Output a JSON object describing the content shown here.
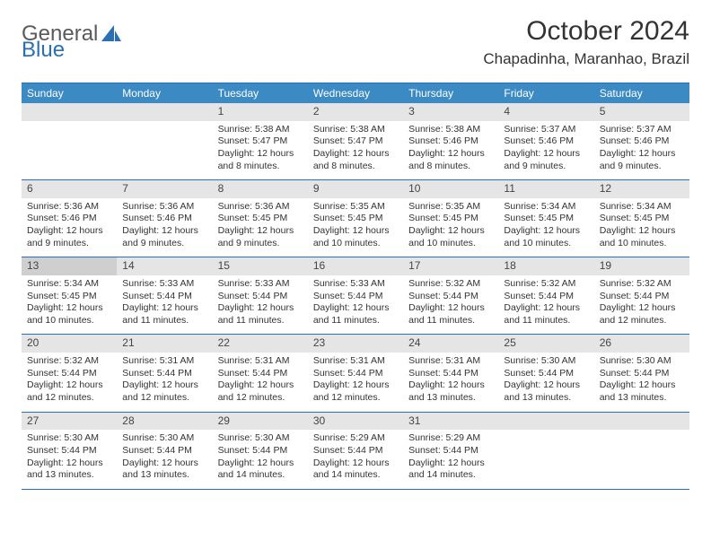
{
  "logo": {
    "text1": "General",
    "text2": "Blue"
  },
  "header": {
    "title": "October 2024",
    "location": "Chapadinha, Maranhao, Brazil"
  },
  "colors": {
    "header_bg": "#3b8ac4",
    "border": "#2a6fb5",
    "daynum_bg": "#e5e5e5",
    "daynum_highlight_bg": "#cfcfcf",
    "text": "#333333",
    "logo_gray": "#5a5a5a",
    "logo_blue": "#2a6fb5"
  },
  "day_names": [
    "Sunday",
    "Monday",
    "Tuesday",
    "Wednesday",
    "Thursday",
    "Friday",
    "Saturday"
  ],
  "weeks": [
    [
      {
        "empty": true
      },
      {
        "empty": true
      },
      {
        "num": "1",
        "sunrise": "Sunrise: 5:38 AM",
        "sunset": "Sunset: 5:47 PM",
        "daylight": "Daylight: 12 hours and 8 minutes."
      },
      {
        "num": "2",
        "sunrise": "Sunrise: 5:38 AM",
        "sunset": "Sunset: 5:47 PM",
        "daylight": "Daylight: 12 hours and 8 minutes."
      },
      {
        "num": "3",
        "sunrise": "Sunrise: 5:38 AM",
        "sunset": "Sunset: 5:46 PM",
        "daylight": "Daylight: 12 hours and 8 minutes."
      },
      {
        "num": "4",
        "sunrise": "Sunrise: 5:37 AM",
        "sunset": "Sunset: 5:46 PM",
        "daylight": "Daylight: 12 hours and 9 minutes."
      },
      {
        "num": "5",
        "sunrise": "Sunrise: 5:37 AM",
        "sunset": "Sunset: 5:46 PM",
        "daylight": "Daylight: 12 hours and 9 minutes."
      }
    ],
    [
      {
        "num": "6",
        "sunrise": "Sunrise: 5:36 AM",
        "sunset": "Sunset: 5:46 PM",
        "daylight": "Daylight: 12 hours and 9 minutes."
      },
      {
        "num": "7",
        "sunrise": "Sunrise: 5:36 AM",
        "sunset": "Sunset: 5:46 PM",
        "daylight": "Daylight: 12 hours and 9 minutes."
      },
      {
        "num": "8",
        "sunrise": "Sunrise: 5:36 AM",
        "sunset": "Sunset: 5:45 PM",
        "daylight": "Daylight: 12 hours and 9 minutes."
      },
      {
        "num": "9",
        "sunrise": "Sunrise: 5:35 AM",
        "sunset": "Sunset: 5:45 PM",
        "daylight": "Daylight: 12 hours and 10 minutes."
      },
      {
        "num": "10",
        "sunrise": "Sunrise: 5:35 AM",
        "sunset": "Sunset: 5:45 PM",
        "daylight": "Daylight: 12 hours and 10 minutes."
      },
      {
        "num": "11",
        "sunrise": "Sunrise: 5:34 AM",
        "sunset": "Sunset: 5:45 PM",
        "daylight": "Daylight: 12 hours and 10 minutes."
      },
      {
        "num": "12",
        "sunrise": "Sunrise: 5:34 AM",
        "sunset": "Sunset: 5:45 PM",
        "daylight": "Daylight: 12 hours and 10 minutes."
      }
    ],
    [
      {
        "num": "13",
        "highlight": true,
        "sunrise": "Sunrise: 5:34 AM",
        "sunset": "Sunset: 5:45 PM",
        "daylight": "Daylight: 12 hours and 10 minutes."
      },
      {
        "num": "14",
        "sunrise": "Sunrise: 5:33 AM",
        "sunset": "Sunset: 5:44 PM",
        "daylight": "Daylight: 12 hours and 11 minutes."
      },
      {
        "num": "15",
        "sunrise": "Sunrise: 5:33 AM",
        "sunset": "Sunset: 5:44 PM",
        "daylight": "Daylight: 12 hours and 11 minutes."
      },
      {
        "num": "16",
        "sunrise": "Sunrise: 5:33 AM",
        "sunset": "Sunset: 5:44 PM",
        "daylight": "Daylight: 12 hours and 11 minutes."
      },
      {
        "num": "17",
        "sunrise": "Sunrise: 5:32 AM",
        "sunset": "Sunset: 5:44 PM",
        "daylight": "Daylight: 12 hours and 11 minutes."
      },
      {
        "num": "18",
        "sunrise": "Sunrise: 5:32 AM",
        "sunset": "Sunset: 5:44 PM",
        "daylight": "Daylight: 12 hours and 11 minutes."
      },
      {
        "num": "19",
        "sunrise": "Sunrise: 5:32 AM",
        "sunset": "Sunset: 5:44 PM",
        "daylight": "Daylight: 12 hours and 12 minutes."
      }
    ],
    [
      {
        "num": "20",
        "sunrise": "Sunrise: 5:32 AM",
        "sunset": "Sunset: 5:44 PM",
        "daylight": "Daylight: 12 hours and 12 minutes."
      },
      {
        "num": "21",
        "sunrise": "Sunrise: 5:31 AM",
        "sunset": "Sunset: 5:44 PM",
        "daylight": "Daylight: 12 hours and 12 minutes."
      },
      {
        "num": "22",
        "sunrise": "Sunrise: 5:31 AM",
        "sunset": "Sunset: 5:44 PM",
        "daylight": "Daylight: 12 hours and 12 minutes."
      },
      {
        "num": "23",
        "sunrise": "Sunrise: 5:31 AM",
        "sunset": "Sunset: 5:44 PM",
        "daylight": "Daylight: 12 hours and 12 minutes."
      },
      {
        "num": "24",
        "sunrise": "Sunrise: 5:31 AM",
        "sunset": "Sunset: 5:44 PM",
        "daylight": "Daylight: 12 hours and 13 minutes."
      },
      {
        "num": "25",
        "sunrise": "Sunrise: 5:30 AM",
        "sunset": "Sunset: 5:44 PM",
        "daylight": "Daylight: 12 hours and 13 minutes."
      },
      {
        "num": "26",
        "sunrise": "Sunrise: 5:30 AM",
        "sunset": "Sunset: 5:44 PM",
        "daylight": "Daylight: 12 hours and 13 minutes."
      }
    ],
    [
      {
        "num": "27",
        "sunrise": "Sunrise: 5:30 AM",
        "sunset": "Sunset: 5:44 PM",
        "daylight": "Daylight: 12 hours and 13 minutes."
      },
      {
        "num": "28",
        "sunrise": "Sunrise: 5:30 AM",
        "sunset": "Sunset: 5:44 PM",
        "daylight": "Daylight: 12 hours and 13 minutes."
      },
      {
        "num": "29",
        "sunrise": "Sunrise: 5:30 AM",
        "sunset": "Sunset: 5:44 PM",
        "daylight": "Daylight: 12 hours and 14 minutes."
      },
      {
        "num": "30",
        "sunrise": "Sunrise: 5:29 AM",
        "sunset": "Sunset: 5:44 PM",
        "daylight": "Daylight: 12 hours and 14 minutes."
      },
      {
        "num": "31",
        "sunrise": "Sunrise: 5:29 AM",
        "sunset": "Sunset: 5:44 PM",
        "daylight": "Daylight: 12 hours and 14 minutes."
      },
      {
        "empty": true
      },
      {
        "empty": true
      }
    ]
  ]
}
